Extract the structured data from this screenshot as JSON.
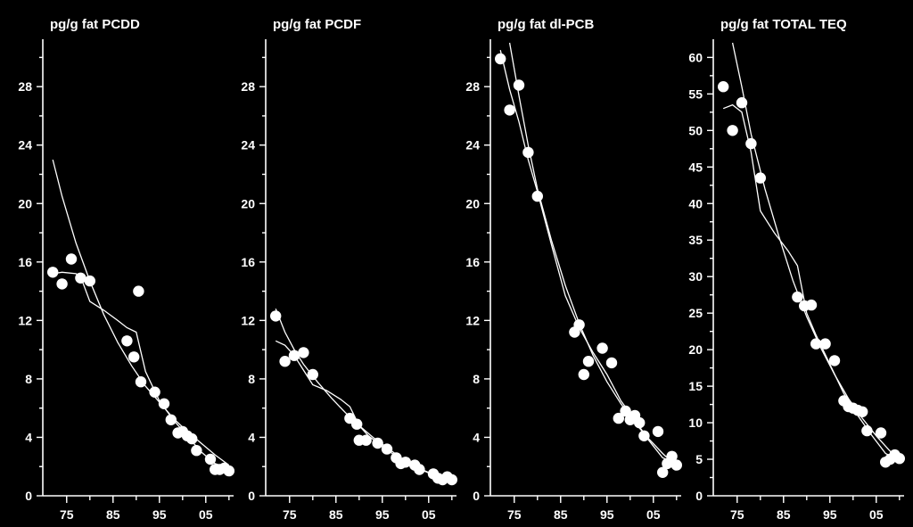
{
  "chart_data": [
    {
      "type": "scatter",
      "title": "pg/g fat PCDD",
      "x_ticks": [
        "75",
        "85",
        "95",
        "05"
      ],
      "x_tick_values": [
        1975,
        1985,
        1995,
        2005
      ],
      "y_ticks": [
        "0",
        "4",
        "8",
        "12",
        "16",
        "20",
        "24",
        "28"
      ],
      "xlim": [
        1971,
        2011
      ],
      "ylim": [
        0,
        31
      ],
      "points": [
        [
          1972,
          15.3
        ],
        [
          1974,
          14.5
        ],
        [
          1976,
          16.2
        ],
        [
          1978,
          14.9
        ],
        [
          1980,
          14.7
        ],
        [
          1988,
          10.6
        ],
        [
          1989.5,
          9.5
        ],
        [
          1990.5,
          14
        ],
        [
          1991,
          7.8
        ],
        [
          1994,
          7.1
        ],
        [
          1996,
          6.3
        ],
        [
          1997.5,
          5.2
        ],
        [
          1999,
          4.3
        ],
        [
          2000,
          4.4
        ],
        [
          2001,
          4.1
        ],
        [
          2002,
          3.9
        ],
        [
          2003,
          3.1
        ],
        [
          2006,
          2.5
        ],
        [
          2007,
          1.8
        ],
        [
          2008,
          1.8
        ],
        [
          2009,
          1.9
        ],
        [
          2010,
          1.7
        ]
      ],
      "curves": [
        [
          [
            1972,
            23
          ],
          [
            1974,
            20.5
          ],
          [
            1977,
            17.3
          ],
          [
            1980,
            14.7
          ],
          [
            1983,
            12.4
          ],
          [
            1986,
            10.5
          ],
          [
            1989,
            8.9
          ],
          [
            1992,
            7.5
          ],
          [
            1995,
            6.4
          ],
          [
            1998,
            5.3
          ],
          [
            2001,
            4.4
          ],
          [
            2004,
            3.6
          ],
          [
            2007,
            2.8
          ],
          [
            2010,
            2.1
          ]
        ],
        [
          [
            1972,
            15.2
          ],
          [
            1974,
            15.3
          ],
          [
            1977,
            15.2
          ],
          [
            1978,
            15
          ],
          [
            1980,
            13.3
          ],
          [
            1983,
            12.7
          ],
          [
            1986,
            12
          ],
          [
            1988,
            11.5
          ],
          [
            1990,
            11.2
          ],
          [
            1992,
            8.5
          ],
          [
            1995,
            6.5
          ],
          [
            1998,
            5.2
          ],
          [
            2001,
            4.1
          ],
          [
            2004,
            3
          ],
          [
            2007,
            2.2
          ],
          [
            2010,
            1.9
          ]
        ]
      ]
    },
    {
      "type": "scatter",
      "title": "pg/g fat PCDF",
      "x_ticks": [
        "75",
        "85",
        "95",
        "05"
      ],
      "x_tick_values": [
        1975,
        1985,
        1995,
        2005
      ],
      "y_ticks": [
        "0",
        "4",
        "8",
        "12",
        "16",
        "20",
        "24",
        "28"
      ],
      "xlim": [
        1971,
        2011
      ],
      "ylim": [
        0,
        31
      ],
      "points": [
        [
          1972,
          12.3
        ],
        [
          1974,
          9.2
        ],
        [
          1976,
          9.6
        ],
        [
          1978,
          9.8
        ],
        [
          1980,
          8.3
        ],
        [
          1988,
          5.3
        ],
        [
          1989.5,
          4.9
        ],
        [
          1990,
          3.8
        ],
        [
          1991.5,
          3.8
        ],
        [
          1994,
          3.6
        ],
        [
          1996,
          3.2
        ],
        [
          1998,
          2.6
        ],
        [
          1999,
          2.2
        ],
        [
          2000,
          2.3
        ],
        [
          2002,
          2.1
        ],
        [
          2003,
          1.8
        ],
        [
          2006,
          1.5
        ],
        [
          2007,
          1.2
        ],
        [
          2008,
          1.1
        ],
        [
          2009,
          1.3
        ],
        [
          2010,
          1.1
        ]
      ],
      "curves": [
        [
          [
            1972,
            12.8
          ],
          [
            1974,
            11.2
          ],
          [
            1976,
            10
          ],
          [
            1978,
            9
          ],
          [
            1981,
            7.8
          ],
          [
            1984,
            6.7
          ],
          [
            1987,
            5.7
          ],
          [
            1990,
            4.8
          ],
          [
            1993,
            4
          ],
          [
            1996,
            3.3
          ],
          [
            1999,
            2.6
          ],
          [
            2002,
            2
          ],
          [
            2005,
            1.6
          ],
          [
            2008,
            1.2
          ],
          [
            2010,
            1
          ]
        ],
        [
          [
            1972,
            10.6
          ],
          [
            1974,
            10.3
          ],
          [
            1976,
            9.6
          ],
          [
            1978,
            8.6
          ],
          [
            1980,
            7.6
          ],
          [
            1983,
            7.2
          ],
          [
            1986,
            6.6
          ],
          [
            1988,
            6.1
          ],
          [
            1990,
            4.8
          ],
          [
            1992,
            4.1
          ],
          [
            1995,
            3.4
          ],
          [
            1998,
            2.7
          ],
          [
            2001,
            2.2
          ],
          [
            2004,
            1.7
          ],
          [
            2007,
            1.3
          ],
          [
            2010,
            1
          ]
        ]
      ]
    },
    {
      "type": "scatter",
      "title": "pg/g fat dl-PCB",
      "x_ticks": [
        "75",
        "85",
        "95",
        "05"
      ],
      "x_tick_values": [
        1975,
        1985,
        1995,
        2005
      ],
      "y_ticks": [
        "0",
        "4",
        "8",
        "12",
        "16",
        "20",
        "24",
        "28"
      ],
      "xlim": [
        1971,
        2011
      ],
      "ylim": [
        0,
        31
      ],
      "points": [
        [
          1972,
          29.9
        ],
        [
          1974,
          26.4
        ],
        [
          1976,
          28.1
        ],
        [
          1978,
          23.5
        ],
        [
          1980,
          20.5
        ],
        [
          1988,
          11.2
        ],
        [
          1989,
          11.7
        ],
        [
          1990,
          8.3
        ],
        [
          1991,
          9.2
        ],
        [
          1994,
          10.1
        ],
        [
          1996,
          9.1
        ],
        [
          1997.5,
          5.3
        ],
        [
          1999,
          5.8
        ],
        [
          2000,
          5.2
        ],
        [
          2001,
          5.5
        ],
        [
          2002,
          5
        ],
        [
          2003,
          4.1
        ],
        [
          2006,
          4.4
        ],
        [
          2007,
          1.6
        ],
        [
          2008,
          2.2
        ],
        [
          2009,
          2.7
        ],
        [
          2010,
          2.1
        ]
      ],
      "curves": [
        [
          [
            1974,
            31
          ],
          [
            1976,
            27.4
          ],
          [
            1978,
            24
          ],
          [
            1980,
            21
          ],
          [
            1983,
            17.5
          ],
          [
            1986,
            14.4
          ],
          [
            1989,
            11.8
          ],
          [
            1992,
            9.6
          ],
          [
            1995,
            7.8
          ],
          [
            1998,
            6.3
          ],
          [
            2001,
            5
          ],
          [
            2004,
            3.9
          ],
          [
            2007,
            2.9
          ],
          [
            2010,
            2
          ]
        ],
        [
          [
            1972,
            30.5
          ],
          [
            1974,
            27.8
          ],
          [
            1976,
            25.6
          ],
          [
            1978,
            23
          ],
          [
            1980,
            20.8
          ],
          [
            1983,
            17.2
          ],
          [
            1986,
            13.7
          ],
          [
            1989,
            11.5
          ],
          [
            1992,
            9.8
          ],
          [
            1995,
            8.3
          ],
          [
            1998,
            6.5
          ],
          [
            2001,
            5.2
          ],
          [
            2004,
            3.8
          ],
          [
            2007,
            2.6
          ],
          [
            2010,
            2.2
          ]
        ]
      ]
    },
    {
      "type": "scatter",
      "title": "pg/g fat TOTAL TEQ",
      "x_ticks": [
        "75",
        "85",
        "95",
        "05"
      ],
      "x_tick_values": [
        1975,
        1985,
        1995,
        2005
      ],
      "y_ticks": [
        "0",
        "5",
        "10",
        "15",
        "20",
        "25",
        "30",
        "35",
        "40",
        "45",
        "50",
        "55",
        "60"
      ],
      "xlim": [
        1971,
        2011
      ],
      "ylim": [
        0,
        62
      ],
      "points": [
        [
          1972,
          56
        ],
        [
          1974,
          50
        ],
        [
          1976,
          53.8
        ],
        [
          1978,
          48.2
        ],
        [
          1980,
          43.5
        ],
        [
          1988,
          27.2
        ],
        [
          1989.5,
          26
        ],
        [
          1991,
          26.1
        ],
        [
          1992,
          20.8
        ],
        [
          1994,
          20.8
        ],
        [
          1996,
          18.5
        ],
        [
          1998,
          13
        ],
        [
          1999,
          12.2
        ],
        [
          2000,
          12
        ],
        [
          2001,
          11.7
        ],
        [
          2002,
          11.5
        ],
        [
          2003,
          8.9
        ],
        [
          2006,
          8.6
        ],
        [
          2007,
          4.6
        ],
        [
          2008,
          5
        ],
        [
          2009,
          5.6
        ],
        [
          2010,
          5.1
        ]
      ],
      "curves": [
        [
          [
            1974,
            62
          ],
          [
            1976,
            56
          ],
          [
            1978,
            49.5
          ],
          [
            1981,
            42
          ],
          [
            1984,
            35.5
          ],
          [
            1987,
            29.5
          ],
          [
            1990,
            24.5
          ],
          [
            1993,
            20.3
          ],
          [
            1996,
            16.6
          ],
          [
            1999,
            13.3
          ],
          [
            2002,
            10.6
          ],
          [
            2005,
            8.2
          ],
          [
            2008,
            6.1
          ],
          [
            2010,
            4.9
          ]
        ],
        [
          [
            1972,
            53
          ],
          [
            1974,
            53.5
          ],
          [
            1976,
            52.5
          ],
          [
            1978,
            47
          ],
          [
            1980,
            39
          ],
          [
            1983,
            36
          ],
          [
            1986,
            33.5
          ],
          [
            1988,
            31.5
          ],
          [
            1990,
            25
          ],
          [
            1992,
            22
          ],
          [
            1995,
            18
          ],
          [
            1998,
            14
          ],
          [
            2001,
            11
          ],
          [
            2004,
            8.3
          ],
          [
            2007,
            5.8
          ],
          [
            2010,
            4.8
          ]
        ]
      ]
    }
  ]
}
